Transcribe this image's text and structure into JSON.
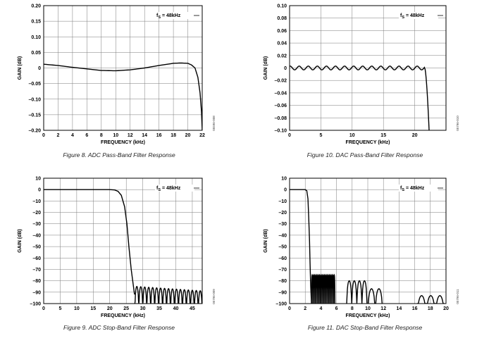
{
  "chart_data": [
    {
      "id": "fig8",
      "type": "line",
      "title": "Figure 8. ADC Pass-Band Filter Response",
      "xlabel": "FREQUENCY (kHz)",
      "ylabel": "GAIN (dB)",
      "legend": "f_S = 48kHz",
      "code": "05596-008",
      "xlim": [
        0,
        22
      ],
      "ylim": [
        -0.2,
        0.2
      ],
      "xticks": [
        0,
        2,
        4,
        6,
        8,
        10,
        12,
        14,
        16,
        18,
        20,
        22
      ],
      "xtick_labels": [
        "0",
        "2",
        "4",
        "6",
        "8",
        "10",
        "12",
        "14",
        "16",
        "18",
        "20",
        "22"
      ],
      "yticks": [
        0.2,
        0.15,
        0.1,
        0.05,
        0,
        -0.05,
        -0.1,
        -0.15,
        -0.2
      ],
      "ytick_labels": [
        "0.20",
        "0.15",
        "0.10",
        "0.05",
        "0",
        "–0.05",
        "–0.10",
        "–0.15",
        "–0.20"
      ],
      "series": [
        {
          "name": "response",
          "x": [
            0,
            2,
            4,
            6,
            8,
            10,
            12,
            14,
            16,
            18,
            19,
            20,
            20.5,
            21,
            21.4,
            21.7,
            21.9,
            22
          ],
          "y": [
            0.012,
            0.008,
            0.002,
            -0.003,
            -0.008,
            -0.009,
            -0.006,
            0.0,
            0.008,
            0.015,
            0.016,
            0.015,
            0.01,
            0.0,
            -0.03,
            -0.08,
            -0.14,
            -0.2
          ]
        }
      ]
    },
    {
      "id": "fig10",
      "type": "line",
      "title": "Figure 10. DAC Pass-Band Filter Response",
      "xlabel": "FREQUENCY (kHz)",
      "ylabel": "GAIN (dB)",
      "legend": "f_S = 48kHz",
      "code": "05796-010",
      "xlim": [
        0,
        25
      ],
      "ylim": [
        -0.1,
        0.1
      ],
      "xticks": [
        0,
        5,
        10,
        15,
        20
      ],
      "xtick_labels": [
        "0",
        "5",
        "10",
        "15",
        "20"
      ],
      "yticks": [
        0.1,
        0.08,
        0.06,
        0.04,
        0.02,
        0,
        -0.02,
        -0.04,
        -0.06,
        -0.08,
        -0.1
      ],
      "ytick_labels": [
        "0.10",
        "0.08",
        "0.06",
        "0.04",
        "0.02",
        "0",
        "–0.02",
        "–0.04",
        "–0.06",
        "–0.08",
        "–0.10"
      ],
      "series": [
        {
          "name": "response",
          "ripple_amplitude_db": 0.003,
          "ripple_end_khz": 21.6,
          "rolloff_end_khz": 22.3,
          "min_db": -0.1
        }
      ]
    },
    {
      "id": "fig9",
      "type": "line",
      "title": "Figure 9. ADC Stop-Band Filter Response",
      "xlabel": "FREQUENCY (kHz)",
      "ylabel": "GAIN (dB)",
      "legend": "f_S = 48kHz",
      "code": "05796-009",
      "xlim": [
        0,
        48
      ],
      "ylim": [
        -100,
        10
      ],
      "xticks": [
        0,
        5,
        10,
        15,
        20,
        25,
        30,
        35,
        40,
        45
      ],
      "xtick_labels": [
        "0",
        "5",
        "10",
        "15",
        "20",
        "25",
        "30",
        "35",
        "40",
        "45"
      ],
      "yticks": [
        10,
        0,
        -10,
        -20,
        -30,
        -40,
        -50,
        -60,
        -70,
        -80,
        -90,
        -100
      ],
      "ytick_labels": [
        "10",
        "0",
        "–10",
        "–20",
        "–30",
        "–40",
        "–50",
        "–60",
        "–70",
        "–80",
        "–90",
        "–100"
      ],
      "series": [
        {
          "name": "passband",
          "x": [
            0,
            20,
            21.5,
            22.5,
            23.5,
            24.5,
            25.2,
            25.8,
            26.5,
            27.5
          ],
          "y": [
            0,
            0,
            -0.3,
            -1.5,
            -5,
            -15,
            -30,
            -50,
            -70,
            -92
          ]
        },
        {
          "name": "stopband",
          "start_khz": 27.6,
          "end_khz": 48,
          "lobe_width_khz": 1.2,
          "peak_start_db": -85,
          "peak_end_db": -89,
          "null_db": -100
        }
      ]
    },
    {
      "id": "fig11",
      "type": "line",
      "title": "Figure 11. DAC Stop-Band Filter Response",
      "xlabel": "FREQUENCY (kHz)",
      "ylabel": "GAIN (dB)",
      "legend": "f_S = 48kHz",
      "code": "05796-011",
      "xlim": [
        0,
        20
      ],
      "ylim": [
        -100,
        10
      ],
      "xticks": [
        0,
        2,
        4,
        6,
        8,
        10,
        12,
        14,
        16,
        18,
        20
      ],
      "xtick_labels": [
        "0",
        "2",
        "4",
        "6",
        "8",
        "10",
        "12",
        "14",
        "16",
        "18",
        "20"
      ],
      "yticks": [
        10,
        0,
        -10,
        -20,
        -30,
        -40,
        -50,
        -60,
        -70,
        -80,
        -90,
        -100
      ],
      "ytick_labels": [
        "10",
        "0",
        "–10",
        "–20",
        "–30",
        "–40",
        "–50",
        "–60",
        "–70",
        "–80",
        "–90",
        "–100"
      ],
      "series": [
        {
          "name": "passband",
          "x": [
            0,
            2.0,
            2.2,
            2.35,
            2.45,
            2.55,
            2.62,
            2.7,
            2.8
          ],
          "y": [
            0,
            0,
            -1,
            -8,
            -25,
            -45,
            -65,
            -85,
            -100
          ]
        },
        {
          "name": "lobes",
          "groups": [
            {
              "start_khz": 2.8,
              "end_khz": 5.8,
              "lobe_width_khz": 0.16,
              "peak_db": -75
            },
            {
              "start_khz": 7.3,
              "end_khz": 9.9,
              "lobe_width_khz": 0.65,
              "peak_db": -80
            },
            {
              "start_khz": 10.0,
              "end_khz": 11.9,
              "lobe_width_khz": 0.95,
              "peak_db": -87
            },
            {
              "start_khz": 16.3,
              "end_khz": 19.8,
              "lobe_width_khz": 1.15,
              "peak_db": -93
            }
          ]
        }
      ]
    }
  ]
}
